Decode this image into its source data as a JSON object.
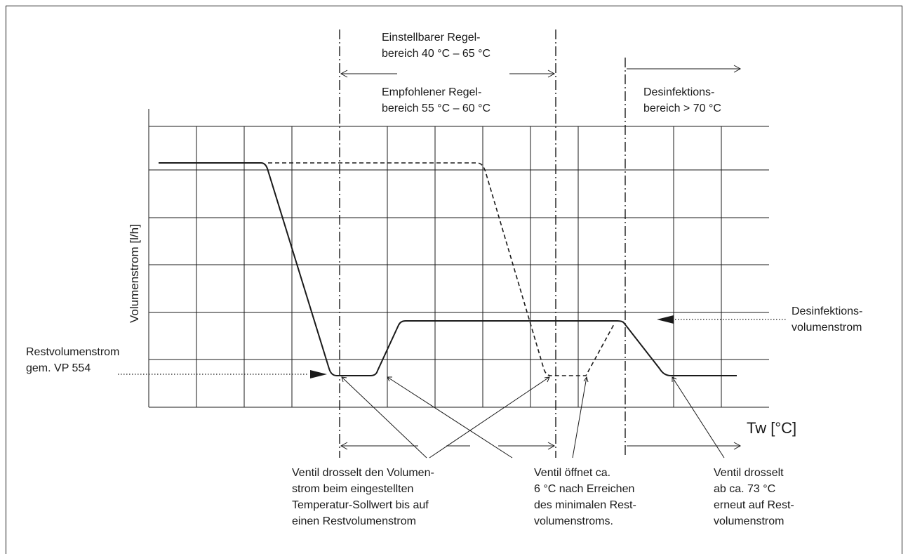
{
  "labels": {
    "einstellbar": [
      "Einstellbarer Regel-",
      "bereich 40 °C – 65 °C"
    ],
    "empfohlen": [
      "Empfohlener Regel-",
      "bereich 55 °C – 60 °C"
    ],
    "desinfektionsbereich": [
      "Desinfektions-",
      "bereich > 70 °C"
    ],
    "y_axis": "Volumenstrom [l/h]",
    "x_axis": "Tw [°C]",
    "restvolumenstrom": [
      "Restvolumenstrom",
      "gem. VP 554"
    ],
    "desinfektionsvolumenstrom": [
      "Desinfektions-",
      "volumenstrom"
    ],
    "note_drosselt": [
      "Ventil drosselt den Volumen-",
      "strom beim eingestellten",
      "Temperatur-Sollwert bis auf",
      "einen Restvolumenstrom"
    ],
    "note_oeffnet": [
      "Ventil öffnet ca.",
      "6 °C nach Erreichen",
      "des minimalen Rest-",
      "volumenstroms."
    ],
    "note_73": [
      "Ventil drosselt",
      "ab ca. 73 °C",
      "erneut auf Rest-",
      "volumenstrom"
    ]
  },
  "styles": {
    "line_color": "#1a1a1a",
    "grid_color": "#1a1a1a",
    "background": "#ffffff"
  }
}
